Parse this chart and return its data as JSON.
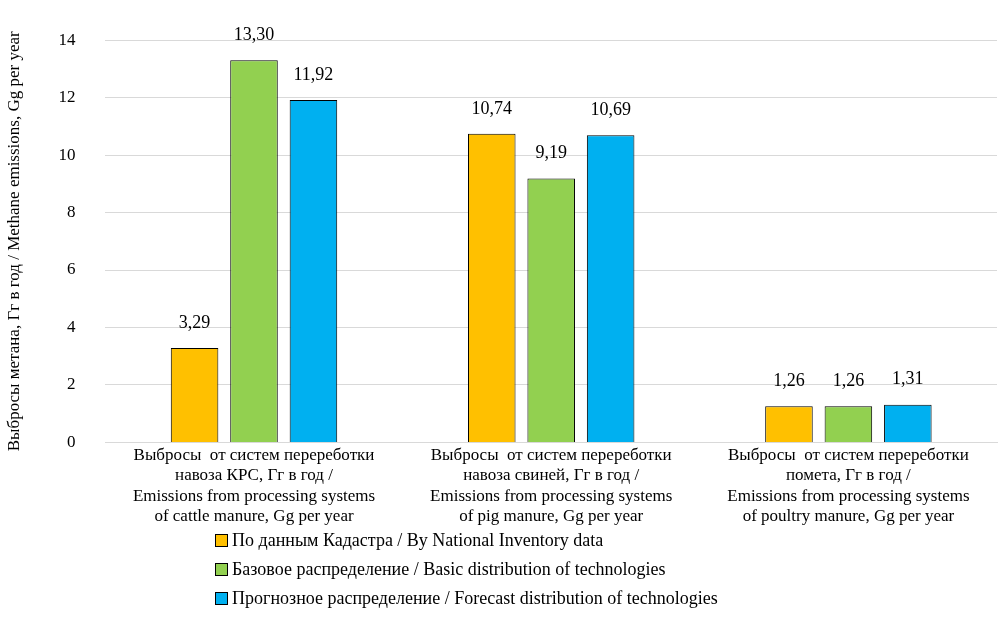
{
  "chart_data": {
    "type": "bar",
    "ylabel": "Выбросы метана, Гг в год / Methane emissions, Gg per year",
    "categories": [
      "Выбросы  от систем перереботки\nнавоза КРС, Гг в год /\nEmissions from processing systems\nof cattle manure, Gg per year",
      "Выбросы  от систем перереботки\nнавоза свиней, Гг в год /\nEmissions from processing systems\nof pig manure, Gg per year",
      "Выбросы  от систем перереботки\nпомета, Гг в год /\nEmissions from processing systems\nof poultry manure, Gg per year"
    ],
    "series": [
      {
        "name": "По данным Кадастра / By National Inventory data",
        "color": "#ffc000",
        "values": [
          3.29,
          10.74,
          1.26
        ],
        "value_labels": [
          "3,29",
          "10,74",
          "1,26"
        ]
      },
      {
        "name": "Базовое распределение / Basic distribution of technologies",
        "color": "#92d050",
        "values": [
          13.3,
          9.19,
          1.26
        ],
        "value_labels": [
          "13,30",
          "9,19",
          "1,26"
        ]
      },
      {
        "name": "Прогнозное распределение / Forecast distribution of technologies",
        "color": "#00b0f0",
        "values": [
          11.92,
          10.69,
          1.31
        ],
        "value_labels": [
          "11,92",
          "10,69",
          "1,31"
        ]
      }
    ],
    "ylim": [
      0,
      14
    ],
    "yticks": [
      0,
      2,
      4,
      6,
      8,
      10,
      12,
      14
    ],
    "grid": "y",
    "legend": "bottom"
  }
}
